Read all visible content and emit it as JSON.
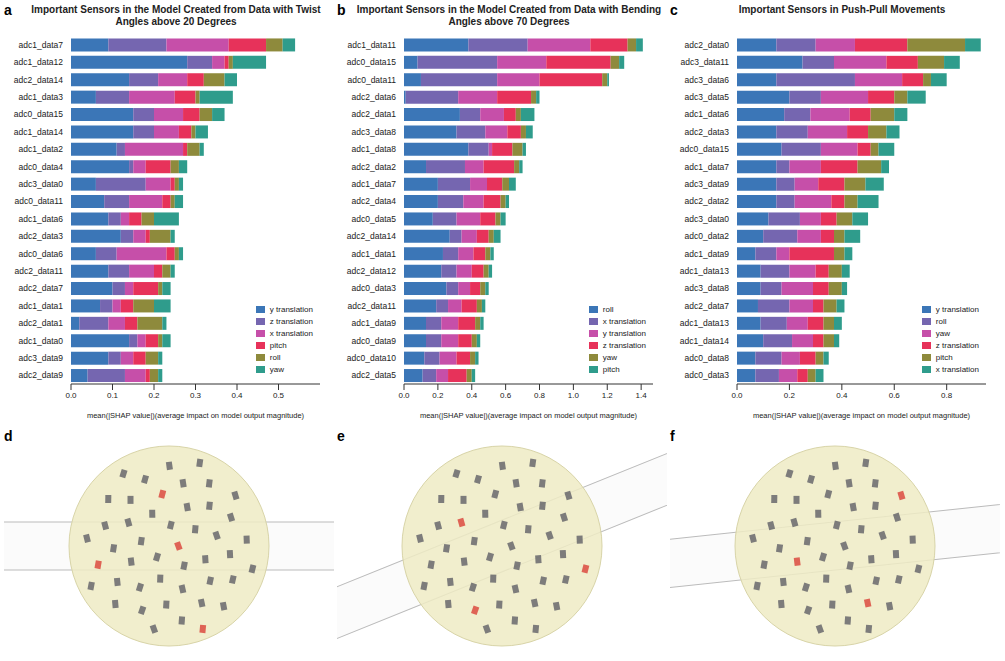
{
  "chart_data": [
    {
      "type": "bar",
      "panel_label": "a",
      "title": "Important Sensors in the Model Created from Data with Twist Angles above 20 Degrees",
      "x_label": "mean(|SHAP value|)(average impact on model output magnitude)",
      "orientation": "horizontal",
      "stacked": true,
      "legend": "lower right",
      "categories": [
        "adc1_data7",
        "adc1_data12",
        "adc2_data14",
        "adc1_data3",
        "adc0_data15",
        "adc1_data14",
        "adc1_data2",
        "adc0_data4",
        "adc3_data0",
        "adc0_data11",
        "adc1_data6",
        "adc2_data3",
        "adc0_data6",
        "adc2_data11",
        "adc2_data7",
        "adc1_data1",
        "adc2_data1",
        "adc1_data0",
        "adc3_data9",
        "adc2_data9"
      ],
      "series": [
        {
          "name": "y translation",
          "color": "#3b76b7",
          "values": [
            0.09,
            0.28,
            0.14,
            0.06,
            0.15,
            0.15,
            0.11,
            0.14,
            0.06,
            0.08,
            0.09,
            0.12,
            0.06,
            0.09,
            0.1,
            0.07,
            0.02,
            0.14,
            0.09,
            0.04
          ]
        },
        {
          "name": "z translation",
          "color": "#7566b0",
          "values": [
            0.14,
            0.06,
            0.07,
            0.08,
            0.05,
            0.05,
            0.02,
            0.01,
            0.12,
            0.06,
            0.03,
            0.03,
            0.05,
            0.05,
            0.03,
            0.03,
            0.07,
            0.02,
            0.03,
            0.09
          ]
        },
        {
          "name": "x translation",
          "color": "#c64fa9",
          "values": [
            0.15,
            0.03,
            0.07,
            0.11,
            0.07,
            0.06,
            0.14,
            0.03,
            0.06,
            0.08,
            0.02,
            0.03,
            0.12,
            0.06,
            0.02,
            0.02,
            0.04,
            0.02,
            0.03,
            0.05
          ]
        },
        {
          "name": "pitch",
          "color": "#e7325a",
          "values": [
            0.09,
            0.01,
            0.04,
            0.05,
            0.04,
            0.03,
            0.01,
            0.06,
            0.01,
            0.02,
            0.03,
            0.01,
            0.02,
            0.02,
            0.06,
            0.03,
            0.03,
            0.03,
            0.03,
            0.01
          ]
        },
        {
          "name": "roll",
          "color": "#8e8a3c",
          "values": [
            0.04,
            0.01,
            0.05,
            0.01,
            0.03,
            0.01,
            0.03,
            0.02,
            0.01,
            0.01,
            0.03,
            0.05,
            0.01,
            0.02,
            0.01,
            0.05,
            0.06,
            0.01,
            0.03,
            0.02
          ]
        },
        {
          "name": "yaw",
          "color": "#2f9c8c",
          "values": [
            0.03,
            0.08,
            0.03,
            0.08,
            0.03,
            0.03,
            0.01,
            0.02,
            0.01,
            0.02,
            0.06,
            0.01,
            0.01,
            0.01,
            0.02,
            0.04,
            0.01,
            0.02,
            0.01,
            0.01
          ]
        }
      ],
      "xlim": [
        0,
        0.6
      ],
      "xticks": [
        {
          "value": 0,
          "label": "0.0"
        },
        0.1,
        0.2,
        0.3,
        0.4,
        0.5
      ]
    },
    {
      "type": "bar",
      "panel_label": "b",
      "title": "Important Sensors in the Model Created from Data with Bending Angles above 70 Degrees",
      "x_label": "mean(|SHAP value|)(average impact on model output magnitude)",
      "orientation": "horizontal",
      "stacked": true,
      "legend": "lower right",
      "categories": [
        "adc1_data11",
        "adc0_data15",
        "adc0_data11",
        "adc2_data6",
        "adc2_data1",
        "adc3_data8",
        "adc1_data8",
        "adc2_data2",
        "adc1_data7",
        "adc2_data4",
        "adc0_data5",
        "adc2_data14",
        "adc1_data1",
        "adc2_data12",
        "adc0_data3",
        "adc2_data11",
        "adc1_data9",
        "adc0_data9",
        "adc0_data10",
        "adc2_data5"
      ],
      "series": [
        {
          "name": "roll",
          "color": "#3b76b7",
          "values": [
            0.38,
            0.08,
            0.1,
            0.01,
            0.33,
            0.31,
            0.38,
            0.13,
            0.2,
            0.2,
            0.17,
            0.27,
            0.23,
            0.22,
            0.25,
            0.19,
            0.13,
            0.13,
            0.12,
            0.11
          ]
        },
        {
          "name": "x translation",
          "color": "#7566b0",
          "values": [
            0.35,
            0.47,
            0.45,
            0.31,
            0.12,
            0.17,
            0.12,
            0.23,
            0.19,
            0.15,
            0.14,
            0.07,
            0.09,
            0.09,
            0.07,
            0.07,
            0.09,
            0.09,
            0.09,
            0.08
          ]
        },
        {
          "name": "y translation",
          "color": "#c64fa9",
          "values": [
            0.37,
            0.29,
            0.25,
            0.23,
            0.14,
            0.13,
            0.02,
            0.11,
            0.1,
            0.12,
            0.14,
            0.09,
            0.09,
            0.09,
            0.07,
            0.08,
            0.1,
            0.1,
            0.1,
            0.07
          ]
        },
        {
          "name": "z translation",
          "color": "#e7325a",
          "values": [
            0.22,
            0.38,
            0.37,
            0.2,
            0.07,
            0.08,
            0.12,
            0.18,
            0.09,
            0.1,
            0.09,
            0.07,
            0.07,
            0.07,
            0.06,
            0.09,
            0.1,
            0.08,
            0.08,
            0.11
          ]
        },
        {
          "name": "yaw",
          "color": "#8e8a3c",
          "values": [
            0.05,
            0.05,
            0.03,
            0.03,
            0.03,
            0.03,
            0.06,
            0.03,
            0.04,
            0.03,
            0.03,
            0.03,
            0.03,
            0.03,
            0.03,
            0.03,
            0.03,
            0.03,
            0.03,
            0.03
          ]
        },
        {
          "name": "pitch",
          "color": "#2f9c8c",
          "values": [
            0.04,
            0.03,
            0.01,
            0.02,
            0.08,
            0.04,
            0.02,
            0.02,
            0.04,
            0.02,
            0.03,
            0.04,
            0.02,
            0.02,
            0.02,
            0.02,
            0.02,
            0.02,
            0.02,
            0.02
          ]
        }
      ],
      "xlim": [
        0,
        1.47
      ],
      "xticks": [
        {
          "value": 0,
          "label": "0.0"
        },
        0.2,
        0.4,
        0.6,
        0.8,
        {
          "value": 1,
          "label": "1.0"
        },
        1.2,
        1.4
      ]
    },
    {
      "type": "bar",
      "panel_label": "c",
      "title": "Important Sensors in Push-Pull Movements",
      "x_label": "mean(|SHAP value|)(average impact on model output magnitude)",
      "orientation": "horizontal",
      "stacked": true,
      "legend": "lower right",
      "categories": [
        "adc2_data0",
        "adc3_data11",
        "adc3_data6",
        "adc3_data5",
        "adc1_data6",
        "adc2_data3",
        "adc0_data15",
        "adc1_data7",
        "adc3_data9",
        "adc2_data2",
        "adc3_data0",
        "adc0_data2",
        "adc1_data9",
        "adc1_data13",
        "adc3_data8",
        "adc2_data7",
        "adc1_data13",
        "adc1_data14",
        "adc0_data8",
        "adc0_data3"
      ],
      "series": [
        {
          "name": "y translation",
          "color": "#3b76b7",
          "values": [
            0.15,
            0.25,
            0.15,
            0.2,
            0.18,
            0.15,
            0.17,
            0.15,
            0.15,
            0.15,
            0.12,
            0.1,
            0.07,
            0.09,
            0.09,
            0.08,
            0.09,
            0.1,
            0.07,
            0.07
          ]
        },
        {
          "name": "roll",
          "color": "#7566b0",
          "values": [
            0.15,
            0.12,
            0.3,
            0.12,
            0.1,
            0.12,
            0.15,
            0.05,
            0.07,
            0.07,
            0.12,
            0.13,
            0.08,
            0.11,
            0.08,
            0.12,
            0.1,
            0.11,
            0.1,
            0.09
          ]
        },
        {
          "name": "yaw",
          "color": "#c64fa9",
          "values": [
            0.15,
            0.2,
            0.18,
            0.18,
            0.15,
            0.15,
            0.14,
            0.12,
            0.09,
            0.14,
            0.08,
            0.09,
            0.05,
            0.1,
            0.12,
            0.09,
            0.08,
            0.08,
            0.07,
            0.07
          ]
        },
        {
          "name": "z translation",
          "color": "#e7325a",
          "values": [
            0.2,
            0.12,
            0.08,
            0.1,
            0.08,
            0.08,
            0.05,
            0.14,
            0.1,
            0.05,
            0.06,
            0.05,
            0.17,
            0.05,
            0.06,
            0.04,
            0.06,
            0.04,
            0.06,
            0.04
          ]
        },
        {
          "name": "pitch",
          "color": "#8e8a3c",
          "values": [
            0.22,
            0.1,
            0.03,
            0.05,
            0.09,
            0.07,
            0.03,
            0.09,
            0.08,
            0.05,
            0.06,
            0.04,
            0.04,
            0.05,
            0.05,
            0.05,
            0.04,
            0.04,
            0.03,
            0.03
          ]
        },
        {
          "name": "x translation",
          "color": "#2f9c8c",
          "values": [
            0.06,
            0.06,
            0.06,
            0.07,
            0.05,
            0.05,
            0.06,
            0.03,
            0.07,
            0.08,
            0.06,
            0.06,
            0.03,
            0.03,
            0.02,
            0.03,
            0.03,
            0.02,
            0.02,
            0.03
          ]
        }
      ],
      "xlim": [
        0,
        0.95
      ],
      "xticks": [
        {
          "value": 0,
          "label": "0.0"
        },
        0.2,
        0.4,
        0.6,
        0.8
      ]
    }
  ],
  "images": [
    {
      "panel_label": "d"
    },
    {
      "panel_label": "e"
    },
    {
      "panel_label": "f"
    }
  ]
}
